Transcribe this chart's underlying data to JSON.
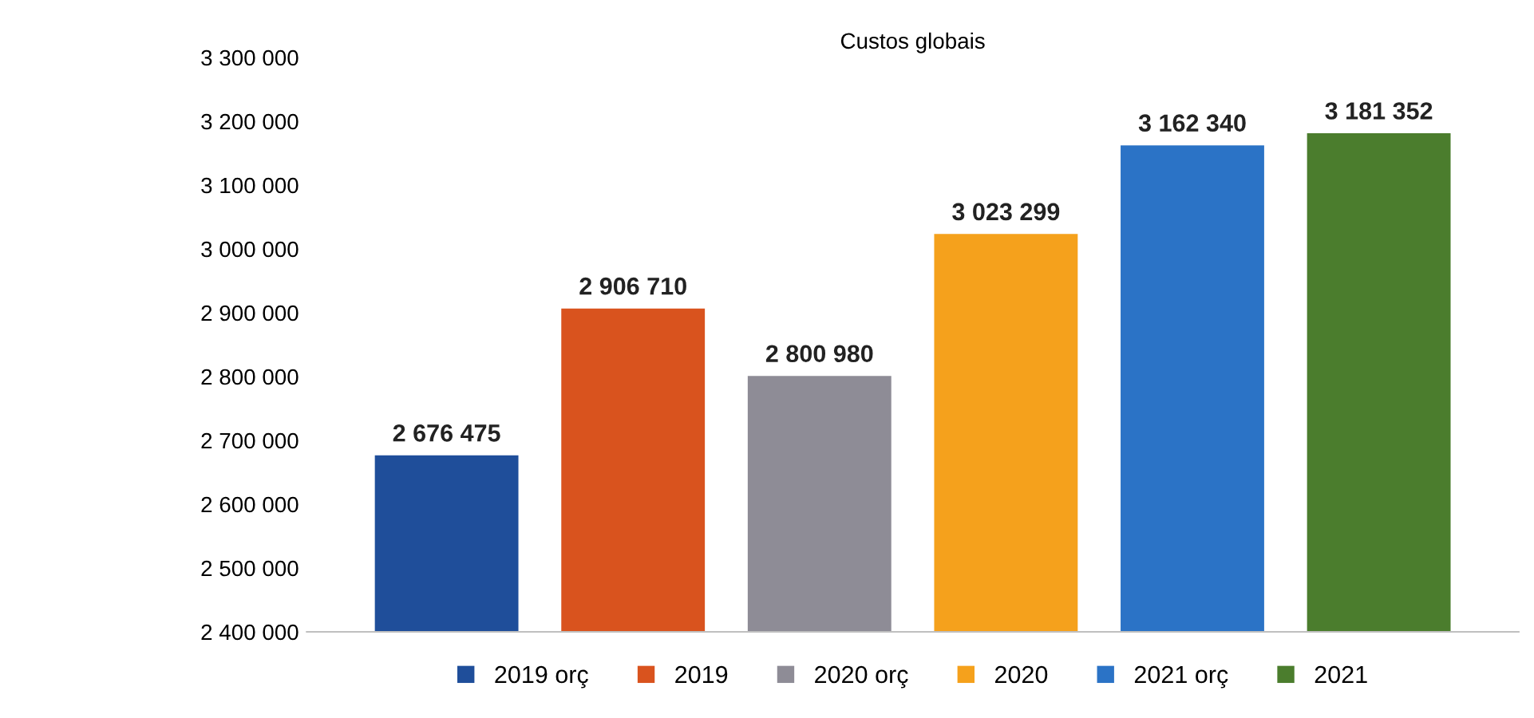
{
  "chart_data": {
    "type": "bar",
    "title": "Custos globais",
    "categories": [
      null,
      null,
      null,
      null,
      null,
      null
    ],
    "series": [
      {
        "name": "2019 orç",
        "color": "#1f4e9a",
        "values": [
          2676475,
          null,
          null,
          null,
          null,
          null
        ],
        "value_labels": [
          "2 676 475",
          null,
          null,
          null,
          null,
          null
        ]
      },
      {
        "name": "2019",
        "color": "#d9531e",
        "values": [
          null,
          2906710,
          null,
          null,
          null,
          null
        ],
        "value_labels": [
          null,
          "2 906 710",
          null,
          null,
          null,
          null
        ]
      },
      {
        "name": "2020 orç",
        "color": "#8e8c96",
        "values": [
          null,
          null,
          2800980,
          null,
          null,
          null
        ],
        "value_labels": [
          null,
          null,
          "2 800 980",
          null,
          null,
          null
        ]
      },
      {
        "name": "2020",
        "color": "#f5a11c",
        "values": [
          null,
          null,
          null,
          3023299,
          null,
          null
        ],
        "value_labels": [
          null,
          null,
          null,
          "3 023 299",
          null,
          null
        ]
      },
      {
        "name": "2021 orç",
        "color": "#2b73c6",
        "values": [
          null,
          null,
          null,
          null,
          3162340,
          null
        ],
        "value_labels": [
          null,
          null,
          null,
          null,
          "3 162 340",
          null
        ]
      },
      {
        "name": "2021",
        "color": "#4b7d2d",
        "values": [
          null,
          null,
          null,
          null,
          null,
          3181352
        ],
        "value_labels": [
          null,
          null,
          null,
          null,
          null,
          "3 181 352"
        ]
      }
    ],
    "ylim": [
      2400000,
      3300000
    ],
    "yticks": [
      {
        "value": 2400000,
        "label": "2 400 000"
      },
      {
        "value": 2500000,
        "label": "2 500 000"
      },
      {
        "value": 2600000,
        "label": "2 600 000"
      },
      {
        "value": 2700000,
        "label": "2 700 000"
      },
      {
        "value": 2800000,
        "label": "2 800 000"
      },
      {
        "value": 2900000,
        "label": "2 900 000"
      },
      {
        "value": 3000000,
        "label": "3 000 000"
      },
      {
        "value": 3100000,
        "label": "3 100 000"
      },
      {
        "value": 3200000,
        "label": "3 200 000"
      },
      {
        "value": 3300000,
        "label": "3 300 000"
      }
    ],
    "legend": "bottom",
    "grid": false
  }
}
